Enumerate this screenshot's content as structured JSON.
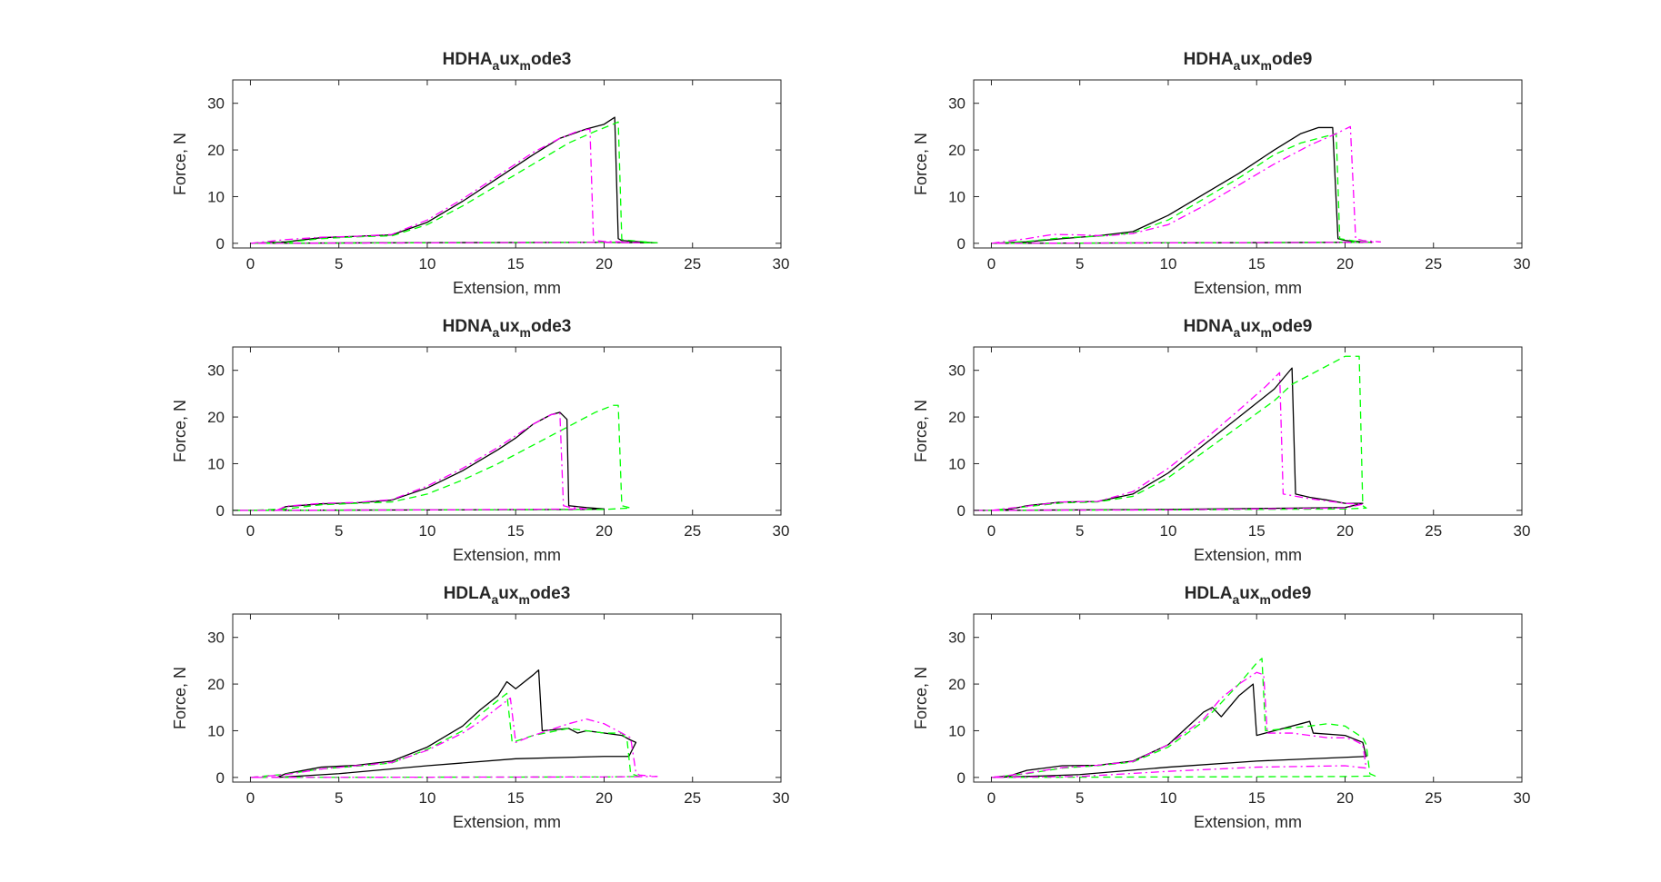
{
  "colors": {
    "background": "#ffffff",
    "axes": "#262626",
    "series": [
      "#000000",
      "#00ff00",
      "#ff00ff"
    ]
  },
  "chart_data": [
    {
      "type": "line",
      "title": {
        "base": "HDHA",
        "sub1": "a",
        "mid": "ux",
        "sub2": "m",
        "tail": "ode3"
      },
      "xlabel": "Extension, mm",
      "ylabel": "Force, N",
      "xlim": [
        -1,
        30
      ],
      "ylim": [
        -1,
        35
      ],
      "xticks": [
        0,
        5,
        10,
        15,
        20,
        25,
        30
      ],
      "yticks": [
        0,
        10,
        20,
        30
      ],
      "grid": false,
      "series": [
        {
          "style": "solid",
          "x": [
            0,
            2,
            4,
            6,
            8,
            10,
            12,
            14,
            16,
            17.5,
            19,
            20,
            20.4,
            20.6,
            20.8,
            21,
            22,
            23,
            20,
            10,
            0
          ],
          "y": [
            0,
            0.3,
            1.2,
            1.5,
            1.8,
            4.5,
            9,
            14,
            19,
            22.5,
            24.5,
            25.5,
            26.5,
            27,
            1,
            0.6,
            0.3,
            0.1,
            0.2,
            0.15,
            0
          ]
        },
        {
          "style": "dashed",
          "x": [
            0,
            2,
            4,
            6,
            8,
            10,
            12,
            14,
            16,
            18,
            19.5,
            20.5,
            20.8,
            21,
            22,
            23,
            20,
            10,
            0
          ],
          "y": [
            0,
            0.2,
            1.0,
            1.4,
            1.6,
            4,
            8,
            12.5,
            17,
            21.5,
            24,
            25.5,
            26,
            0.8,
            0.4,
            0.1,
            0.2,
            0.1,
            0
          ],
          "note": ""
        },
        {
          "style": "dashdot",
          "x": [
            0,
            2,
            4,
            6,
            8,
            10,
            12,
            14,
            16,
            17.5,
            18.5,
            19.2,
            19.4,
            20,
            21,
            22,
            20,
            10,
            0
          ],
          "y": [
            0,
            0.8,
            1.3,
            1.5,
            1.9,
            5,
            9.5,
            14.5,
            19.5,
            22.5,
            24,
            24.5,
            0.6,
            0.4,
            0.3,
            0.1,
            0.2,
            0.1,
            0
          ]
        }
      ]
    },
    {
      "type": "line",
      "title": {
        "base": "HDHA",
        "sub1": "a",
        "mid": "ux",
        "sub2": "m",
        "tail": "ode9"
      },
      "xlabel": "Extension, mm",
      "ylabel": "Force, N",
      "xlim": [
        -1,
        30
      ],
      "ylim": [
        -1,
        35
      ],
      "xticks": [
        0,
        5,
        10,
        15,
        20,
        25,
        30
      ],
      "yticks": [
        0,
        10,
        20,
        30
      ],
      "grid": false,
      "series": [
        {
          "style": "solid",
          "x": [
            0,
            2,
            4,
            6,
            8,
            10,
            12,
            14,
            16,
            17.5,
            18.5,
            19.3,
            19.6,
            20,
            21,
            21.5,
            20,
            10,
            0
          ],
          "y": [
            0,
            0.3,
            1.0,
            1.6,
            2.5,
            6,
            10.5,
            15,
            20,
            23.5,
            24.8,
            24.8,
            1,
            0.6,
            0.3,
            0.2,
            0.2,
            0.1,
            0
          ]
        },
        {
          "style": "dashed",
          "x": [
            0,
            2,
            4,
            6,
            8,
            10,
            12,
            14,
            16,
            17.5,
            18.5,
            19.5,
            19.7,
            20.5,
            21.5,
            20,
            10,
            0
          ],
          "y": [
            0,
            0.4,
            1.2,
            1.5,
            2.2,
            5,
            9.5,
            14,
            19,
            21.5,
            22.5,
            23.5,
            1,
            0.5,
            0.2,
            0.2,
            0.1,
            0
          ]
        },
        {
          "style": "dashdot",
          "x": [
            0,
            2,
            3.5,
            5,
            6.5,
            8,
            10,
            12,
            14,
            16,
            18,
            19.5,
            20.3,
            20.6,
            21,
            22,
            20,
            10,
            0
          ],
          "y": [
            0,
            1.0,
            1.9,
            1.8,
            1.6,
            2.1,
            4,
            8,
            12.5,
            17,
            21,
            23.5,
            25,
            1,
            0.6,
            0.3,
            0.2,
            0.1,
            0
          ]
        }
      ]
    },
    {
      "type": "line",
      "title": {
        "base": "HDNA",
        "sub1": "a",
        "mid": "ux",
        "sub2": "m",
        "tail": "ode3"
      },
      "xlabel": "Extension, mm",
      "ylabel": "Force, N",
      "xlim": [
        -1,
        30
      ],
      "ylim": [
        -1,
        35
      ],
      "xticks": [
        0,
        5,
        10,
        15,
        20,
        25,
        30
      ],
      "yticks": [
        0,
        10,
        20,
        30
      ],
      "grid": false,
      "series": [
        {
          "style": "solid",
          "x": [
            1.5,
            2,
            4,
            6,
            8,
            10,
            12,
            14,
            15,
            16,
            17,
            17.5,
            17.9,
            18,
            19,
            20,
            19,
            10,
            0,
            -1
          ],
          "y": [
            0,
            0.8,
            1.4,
            1.6,
            2.2,
            4.8,
            8.5,
            13,
            15.5,
            18.5,
            20.5,
            21,
            19.5,
            1,
            0.6,
            0.3,
            0.2,
            0.1,
            0,
            0
          ]
        },
        {
          "style": "dashed",
          "x": [
            -1,
            0,
            2,
            4,
            6,
            8,
            10,
            12,
            14,
            16,
            18,
            19.5,
            20.5,
            20.8,
            21,
            21.5,
            20,
            10,
            0,
            -1
          ],
          "y": [
            0,
            0,
            0.3,
            1.2,
            1.5,
            1.8,
            3.5,
            6.5,
            10,
            14,
            18,
            21,
            22.5,
            22.5,
            1,
            0.5,
            0.2,
            0.1,
            0,
            0
          ]
        },
        {
          "style": "dashdot",
          "x": [
            1.5,
            2,
            4,
            6,
            8,
            10,
            12,
            14,
            16,
            17,
            17.5,
            17.7,
            18,
            19,
            10,
            0,
            -1
          ],
          "y": [
            0,
            0.9,
            1.5,
            1.7,
            2.3,
            5.2,
            9,
            13.5,
            18.5,
            20.5,
            20.8,
            1,
            0.7,
            0.3,
            0.1,
            0,
            0
          ]
        }
      ]
    },
    {
      "type": "line",
      "title": {
        "base": "HDNA",
        "sub1": "a",
        "mid": "ux",
        "sub2": "m",
        "tail": "ode9"
      },
      "xlabel": "Extension, mm",
      "ylabel": "Force, N",
      "xlim": [
        -1,
        30
      ],
      "ylim": [
        -1,
        35
      ],
      "xticks": [
        0,
        5,
        10,
        15,
        20,
        25,
        30
      ],
      "yticks": [
        0,
        10,
        20,
        30
      ],
      "grid": false,
      "series": [
        {
          "style": "solid",
          "x": [
            -1,
            0,
            1,
            2,
            4,
            6,
            8,
            10,
            12,
            14,
            16,
            17,
            17.2,
            18,
            19,
            20,
            21,
            20,
            10,
            0,
            -1
          ],
          "y": [
            0,
            0,
            0.2,
            1.0,
            1.8,
            1.9,
            3.5,
            8,
            14,
            20,
            26,
            30.5,
            3.5,
            2.8,
            2.2,
            1.5,
            1.5,
            0.6,
            0.2,
            0,
            0
          ]
        },
        {
          "style": "dashed",
          "x": [
            -1,
            0,
            2,
            4,
            6,
            8,
            10,
            12,
            14,
            16,
            17,
            18,
            19,
            20,
            20.8,
            21,
            21.2,
            20,
            10,
            0,
            -1
          ],
          "y": [
            0,
            0,
            0.8,
            1.6,
            1.8,
            3,
            7,
            12.5,
            18,
            23.5,
            27,
            29,
            31,
            33,
            33,
            1,
            0.5,
            0.3,
            0.1,
            0,
            0
          ]
        },
        {
          "style": "dashdot",
          "x": [
            -1,
            0,
            2,
            4,
            6,
            8,
            10,
            12,
            14,
            15.5,
            16.3,
            16.5,
            18,
            20,
            21,
            20,
            10,
            0,
            -1
          ],
          "y": [
            0,
            0,
            0.9,
            1.8,
            1.9,
            4,
            9,
            15,
            21.5,
            26.5,
            29.5,
            3.5,
            2.5,
            1.5,
            1.3,
            0.5,
            0.1,
            0,
            0
          ]
        }
      ]
    },
    {
      "type": "line",
      "title": {
        "base": "HDLA",
        "sub1": "a",
        "mid": "ux",
        "sub2": "m",
        "tail": "ode3"
      },
      "xlabel": "Extension, mm",
      "ylabel": "Force, N",
      "xlim": [
        -1,
        30
      ],
      "ylim": [
        -1,
        35
      ],
      "xticks": [
        0,
        5,
        10,
        15,
        20,
        25,
        30
      ],
      "yticks": [
        0,
        10,
        20,
        30
      ],
      "grid": false,
      "series": [
        {
          "style": "solid",
          "x": [
            1.5,
            2,
            4,
            6,
            8,
            10,
            12,
            13,
            14,
            14.5,
            15,
            16,
            16.3,
            16.5,
            18,
            18.5,
            19,
            20,
            21,
            21.5,
            21.8,
            21.4,
            20,
            15,
            10,
            5,
            1.5
          ],
          "y": [
            0,
            0.8,
            2.2,
            2.6,
            3.5,
            6.5,
            11,
            14.5,
            17.5,
            20.5,
            19,
            22,
            23,
            10,
            10.5,
            9.5,
            10,
            9.5,
            9,
            8,
            7.5,
            4.5,
            4.5,
            4,
            2.5,
            0.8,
            0
          ]
        },
        {
          "style": "dashed",
          "x": [
            0,
            2,
            4,
            6,
            8,
            10,
            12,
            13,
            14,
            14.5,
            14.8,
            16,
            18,
            19,
            20,
            21,
            21.3,
            21.5,
            22,
            20,
            10,
            0
          ],
          "y": [
            0,
            0.7,
            1.8,
            2.4,
            3.1,
            6,
            10,
            13.5,
            16.5,
            18,
            7.5,
            9,
            10.5,
            10,
            9.5,
            9.5,
            8,
            0.8,
            0.2,
            0.1,
            0.05,
            0
          ]
        },
        {
          "style": "dashdot",
          "x": [
            0,
            2,
            4,
            6,
            8,
            10,
            12,
            13,
            14,
            14.7,
            15,
            16,
            18,
            19,
            20,
            21,
            21.5,
            21.8,
            22,
            23,
            20,
            10,
            0
          ],
          "y": [
            0,
            0.6,
            1.8,
            2.5,
            3.2,
            5.8,
            9.5,
            12,
            15,
            17,
            7.5,
            9,
            11.5,
            12.5,
            11.5,
            9.5,
            8.5,
            1,
            0.5,
            0.2,
            0.1,
            0.05,
            0
          ]
        }
      ]
    },
    {
      "type": "line",
      "title": {
        "base": "HDLA",
        "sub1": "a",
        "mid": "ux",
        "sub2": "m",
        "tail": "ode9"
      },
      "xlabel": "Extension, mm",
      "ylabel": "Force, N",
      "xlim": [
        -1,
        30
      ],
      "ylim": [
        -1,
        35
      ],
      "xticks": [
        0,
        5,
        10,
        15,
        20,
        25,
        30
      ],
      "yticks": [
        0,
        10,
        20,
        30
      ],
      "grid": false,
      "series": [
        {
          "style": "solid",
          "x": [
            0,
            1,
            2,
            4,
            6,
            8,
            10,
            11,
            12,
            12.5,
            13,
            14,
            14.8,
            15,
            16,
            18,
            18.2,
            20,
            21,
            21.2,
            20,
            15,
            10,
            5,
            2,
            0
          ],
          "y": [
            0,
            0.3,
            1.5,
            2.5,
            2.6,
            3.5,
            7,
            10.5,
            14,
            15,
            13,
            17.5,
            20,
            9,
            10,
            12,
            9.5,
            9,
            7.5,
            4.5,
            4.3,
            3.5,
            2.2,
            0.6,
            0.2,
            0
          ]
        },
        {
          "style": "dashed",
          "x": [
            0,
            2,
            4,
            6,
            8,
            10,
            12,
            13,
            14,
            15,
            15.3,
            15.5,
            16,
            18,
            19,
            20,
            21,
            21.2,
            21.4,
            21.7,
            20,
            10,
            0
          ],
          "y": [
            0,
            0.8,
            2.0,
            2.5,
            3.3,
            6.5,
            12,
            16,
            20,
            24.5,
            25.5,
            10,
            10.2,
            11,
            11.5,
            11,
            8.5,
            7,
            0.8,
            0.3,
            0.2,
            0.1,
            0
          ]
        },
        {
          "style": "dashdot",
          "x": [
            0,
            2,
            4,
            6,
            8,
            10,
            12,
            13,
            14,
            15,
            15.4,
            15.6,
            17,
            18,
            19,
            20,
            20.5,
            21,
            21.2,
            20,
            15,
            10,
            5,
            0
          ],
          "y": [
            0,
            0.9,
            2.1,
            2.6,
            3.4,
            7,
            12.5,
            17,
            20,
            22.5,
            22,
            9.5,
            9.5,
            9,
            8.5,
            8.5,
            8,
            7,
            2,
            2.5,
            2.2,
            1.3,
            0.2,
            0
          ]
        }
      ]
    }
  ]
}
